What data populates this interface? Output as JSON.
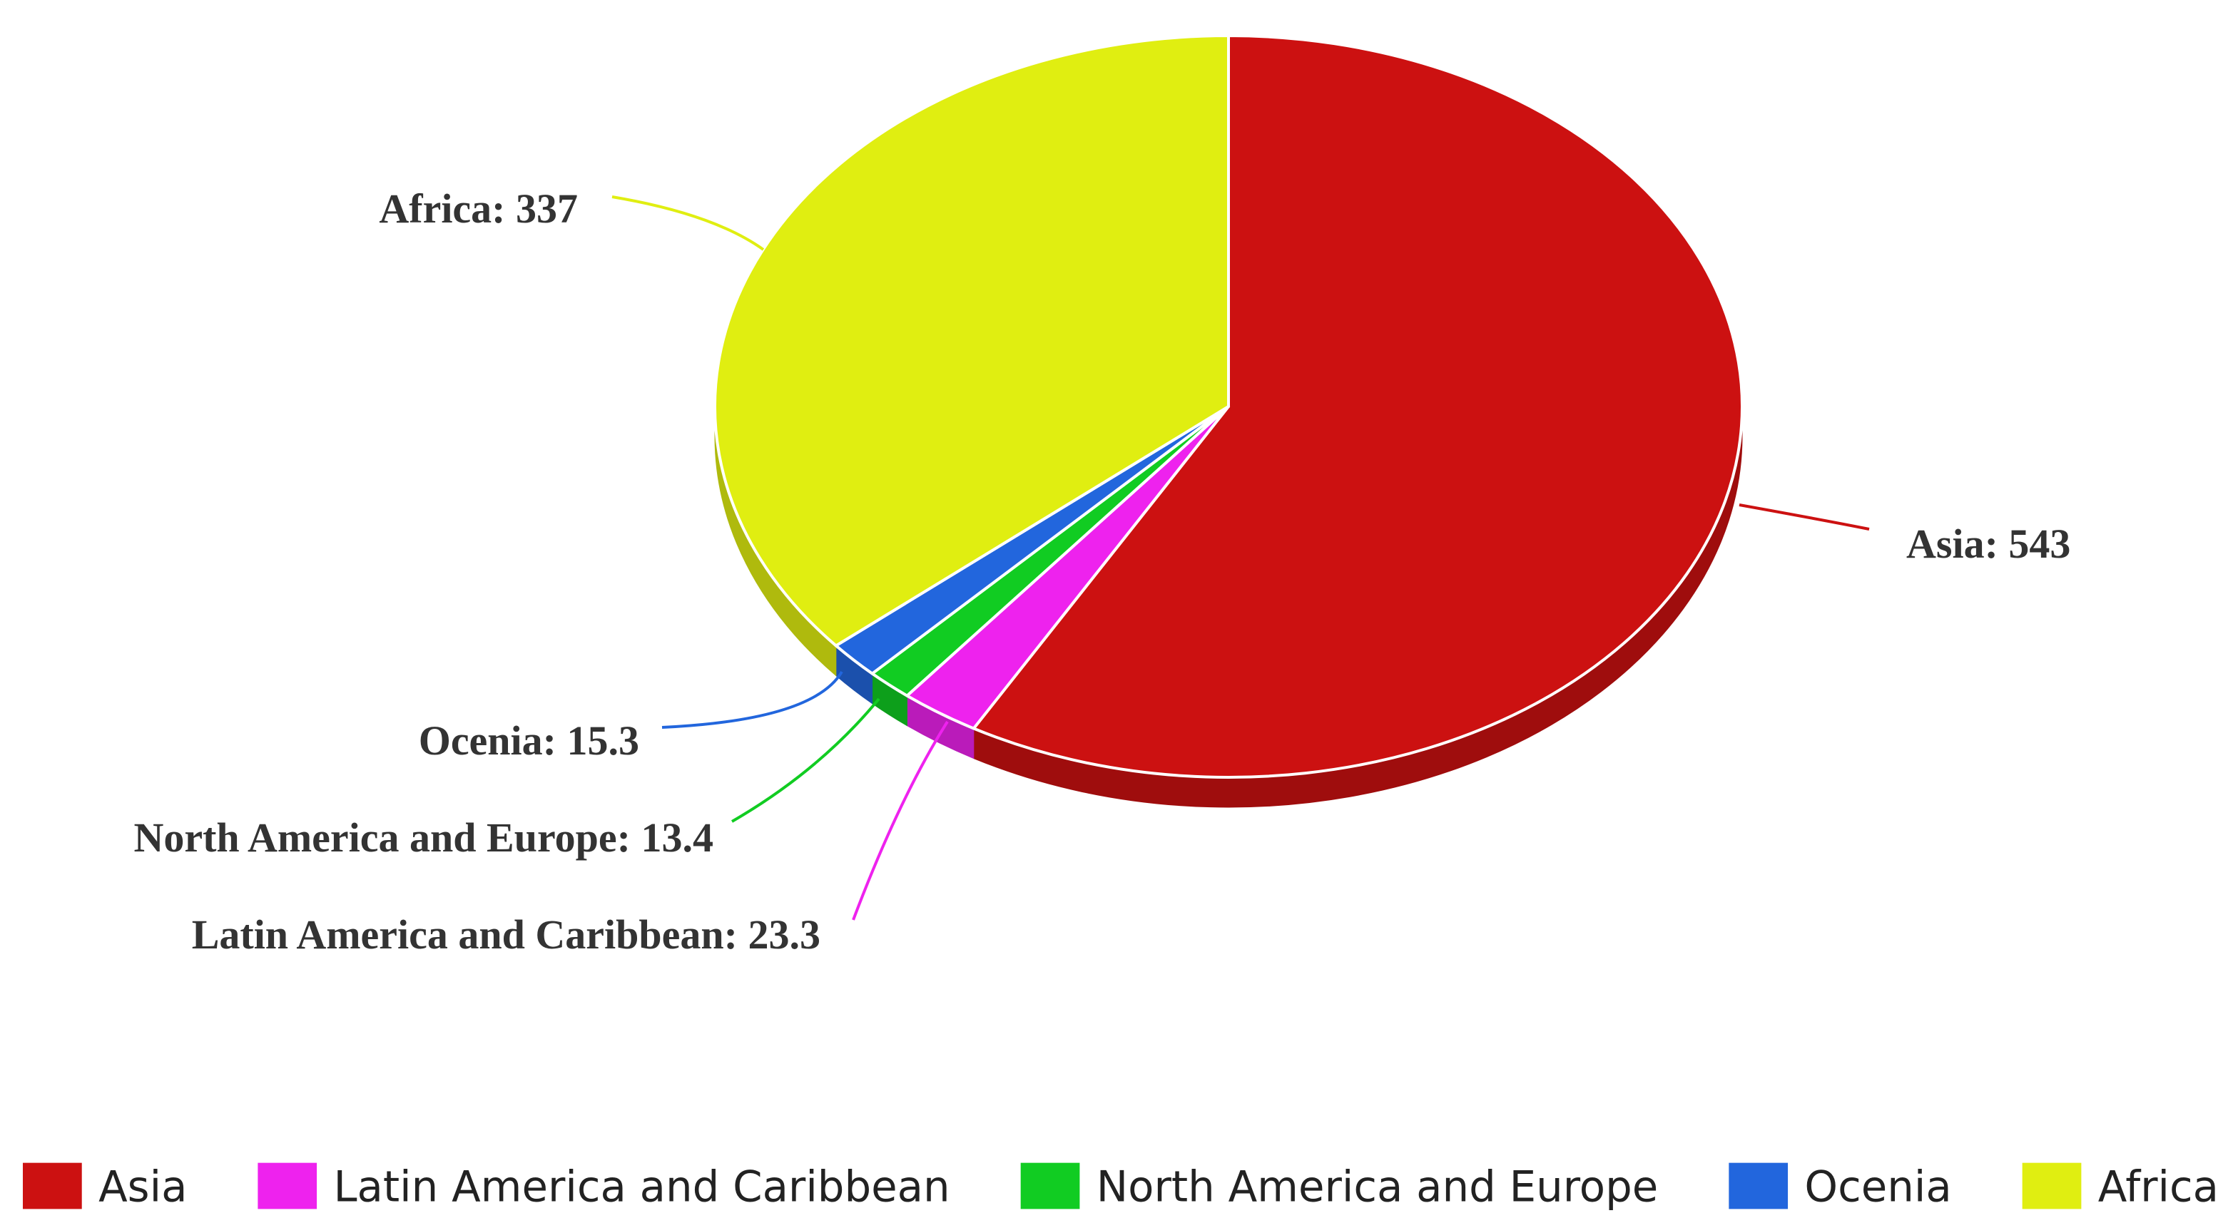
{
  "chart_data": {
    "type": "pie",
    "title": "",
    "categories": [
      "Asia",
      "Latin America and Caribbean",
      "North America and Europe",
      "Ocenia",
      "Africa"
    ],
    "values": [
      543,
      23.3,
      13.4,
      15.3,
      337
    ],
    "colors": [
      "#cc1111",
      "#ee22ee",
      "#11cc22",
      "#2266dd",
      "#e0ee11"
    ],
    "data_labels": [
      "Asia: 543",
      "Latin America and Caribbean: 23.3",
      "North America and Europe: 13.4",
      "Ocenia: 15.3",
      "Africa: 337"
    ],
    "legend_position": "bottom",
    "style": "3d"
  }
}
